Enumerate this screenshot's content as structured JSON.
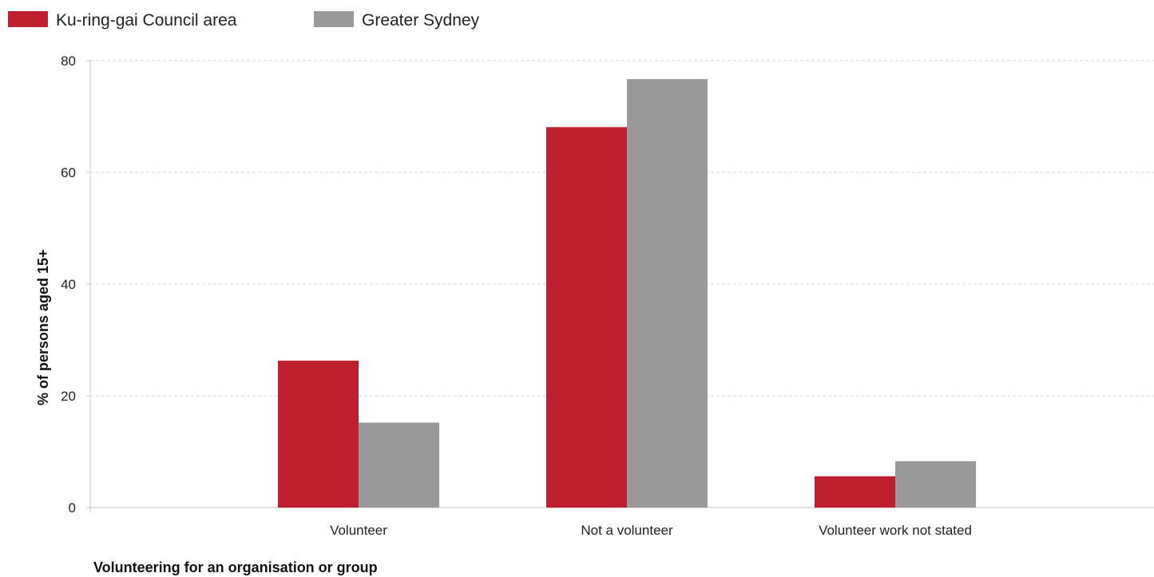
{
  "chart_data": {
    "type": "bar",
    "xlabel": "Volunteering for an organisation or group",
    "ylabel": "% of persons aged 15+",
    "categories": [
      "Volunteer",
      "Not a volunteer",
      "Volunteer work not stated"
    ],
    "series": [
      {
        "name": "Ku-ring-gai Council area",
        "color": "#be1e2d",
        "values": [
          26.3,
          68.1,
          5.6
        ]
      },
      {
        "name": "Greater Sydney",
        "color": "#999999",
        "values": [
          15.2,
          76.7,
          8.3
        ]
      }
    ],
    "ylim": [
      0,
      80
    ],
    "yticks": [
      0,
      20,
      40,
      60,
      80
    ],
    "grid": true,
    "legend_position": "top-left"
  }
}
